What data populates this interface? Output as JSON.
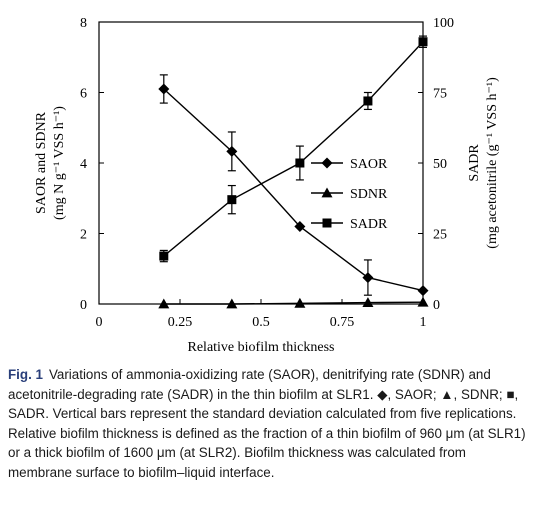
{
  "chart_data": {
    "type": "line",
    "x_label": "Relative biofilm thickness",
    "y_left_label_line1": "SAOR and SDNR",
    "y_left_label_line2": "(mg N g⁻¹ VSS h⁻¹)",
    "y_right_label_line1": "SADR",
    "y_right_label_line2": "(mg acetonitrile (g⁻¹ VSS h⁻¹)",
    "x_ticks": [
      "0",
      "0.25",
      "0.5",
      "0.75",
      "1"
    ],
    "x_tick_values": [
      0,
      0.25,
      0.5,
      0.75,
      1
    ],
    "y_left_ticks": [
      "0",
      "2",
      "4",
      "6",
      "8"
    ],
    "y_left_tick_values": [
      0,
      2,
      4,
      6,
      8
    ],
    "y_right_ticks": [
      "0",
      "25",
      "50",
      "75",
      "100"
    ],
    "y_right_tick_values": [
      0,
      25,
      50,
      75,
      100
    ],
    "xlim": [
      0,
      1
    ],
    "ylim_left": [
      0,
      8
    ],
    "ylim_right": [
      0,
      100
    ],
    "legend_position": "right-middle",
    "series": [
      {
        "name": "SAOR",
        "axis": "left",
        "marker": "diamond",
        "x": [
          0.2,
          0.41,
          0.62,
          0.83,
          1.0
        ],
        "y": [
          6.1,
          4.33,
          2.2,
          0.75,
          0.38
        ],
        "err": [
          0.4,
          0.55,
          0,
          0.5,
          0
        ]
      },
      {
        "name": "SDNR",
        "axis": "left",
        "marker": "triangle",
        "x": [
          0.2,
          0.41,
          0.62,
          0.83,
          1.0
        ],
        "y": [
          0.0,
          0.0,
          0.02,
          0.04,
          0.05
        ],
        "err": [
          0,
          0,
          0,
          0,
          0
        ]
      },
      {
        "name": "SADR",
        "axis": "right",
        "marker": "square",
        "x": [
          0.2,
          0.41,
          0.62,
          0.83,
          1.0
        ],
        "y": [
          17,
          37,
          50,
          72,
          93
        ],
        "err": [
          2,
          5,
          6,
          3,
          2
        ]
      }
    ]
  },
  "caption": {
    "label": "Fig. 1",
    "text": "Variations of ammonia-oxidizing rate (SAOR), denitrifying rate (SDNR) and acetonitrile-degrading rate (SADR) in the thin biofilm at SLR1. ◆, SAOR; ▲, SDNR; ■, SADR. Vertical bars represent the standard deviation calculated from five replications. Relative biofilm thickness is defined as the fraction of a thin biofilm of 960 μm (at SLR1) or a thick biofilm of 1600 μm (at SLR2). Biofilm thickness was calculated from membrane surface to biofilm–liquid interface."
  }
}
